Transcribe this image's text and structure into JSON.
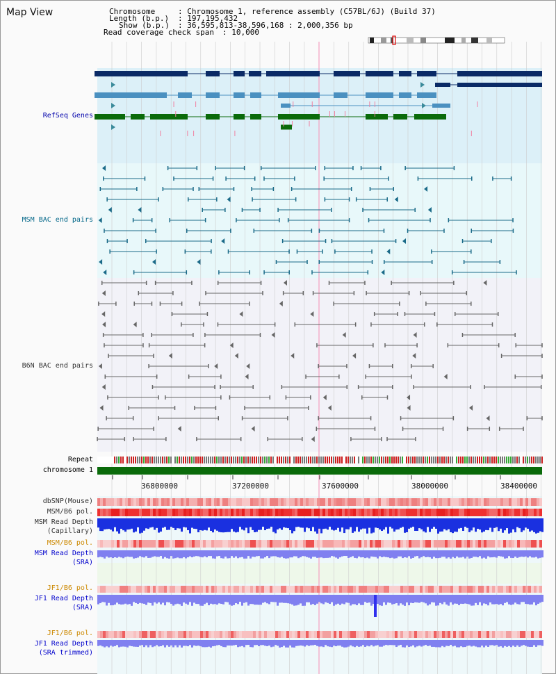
{
  "title": "Map View",
  "header": {
    "chromosome_label": "Chromosome",
    "chromosome_value": ": Chromosome 1, reference assembly (C57BL/6J) (Build 37)",
    "length_label": "Length (b.p.)",
    "length_value": ": 197,195,432",
    "show_label": "Show (b.p.)",
    "show_value": ": 36,595,813-38,596,168 : 2,000,356 bp",
    "coverage_label": "Read coverage check span",
    "coverage_value": ": 10,000"
  },
  "tracks": {
    "refseq": "RefSeq Genes",
    "msm_bac": "MSM BAC end pairs",
    "b6n_bac": "B6N BAC end pairs",
    "repeat": "Repeat",
    "chromosome": "chromosome 1",
    "dbsnp": "dbSNP(Mouse)",
    "msm_b6_pol": "MSM/B6 pol.",
    "msm_read_depth_cap_1": "MSM Read Depth",
    "msm_read_depth_cap_2": "(Capillary)",
    "msm_b6_pol_2": "MSM/B6 pol.",
    "msm_read_depth_sra_1": "MSM Read Depth",
    "msm_read_depth_sra_2": "(SRA)",
    "jf1_b6_pol": "JF1/B6 pol.",
    "jf1_read_depth_sra_1": "JF1 Read Depth",
    "jf1_read_depth_sra_2": "(SRA)",
    "jf1_b6_pol_2": "JF1/B6 pol.",
    "jf1_read_depth_trim_1": "JF1 Read Depth",
    "jf1_read_depth_trim_2": "(SRA trimmed)"
  },
  "axis": {
    "ticks": [
      "36800000",
      "37200000",
      "37600000",
      "38000000",
      "38400000"
    ]
  },
  "colors": {
    "refseq_dark": "#0a2a66",
    "refseq_mid": "#4a90c0",
    "refseq_green": "#0a6a0a",
    "msm_line": "#1a6a88",
    "b6n_line": "#666666",
    "chromosome_bar": "#0a6a0a",
    "snp_pink": "#f0a0a0",
    "pol_red": "#ee3030",
    "depth_blue": "#1a30e0",
    "depth_light": "#8080f0"
  }
}
